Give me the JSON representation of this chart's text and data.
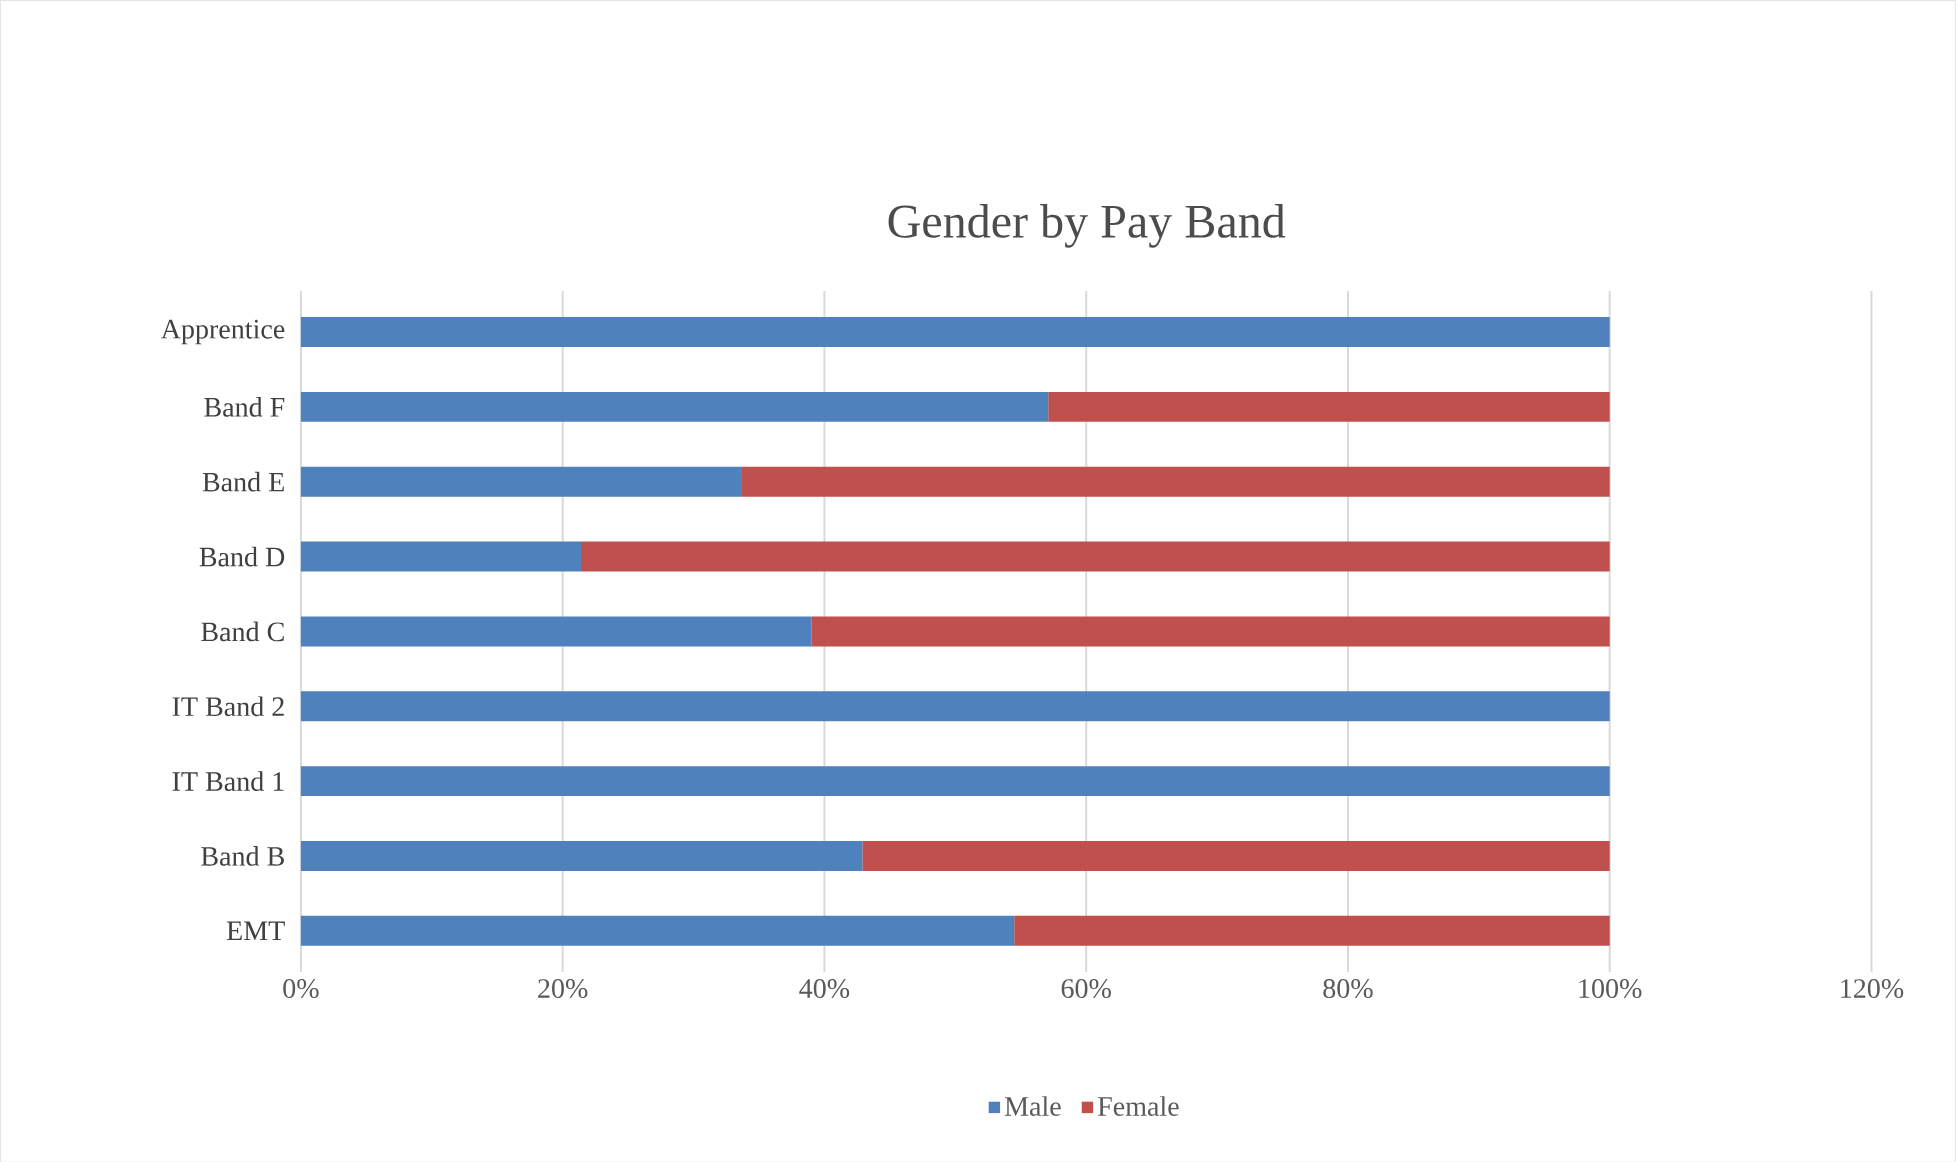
{
  "chart_data": {
    "type": "bar",
    "orientation": "horizontal",
    "stacked": true,
    "title": "Gender by Pay Band",
    "categories": [
      "Apprentice",
      "Band F",
      "Band E",
      "Band D",
      "Band C",
      "IT Band 2",
      "IT Band 1",
      "Band B",
      "EMT"
    ],
    "series": [
      {
        "name": "Male",
        "color": "#4f81bd",
        "values": [
          100,
          57.1,
          33.7,
          21.4,
          39.0,
          100,
          100,
          42.9,
          54.5
        ]
      },
      {
        "name": "Female",
        "color": "#c0504d",
        "values": [
          0,
          42.9,
          66.3,
          78.6,
          61.0,
          0,
          0,
          57.1,
          45.5
        ]
      }
    ],
    "xlim": [
      0,
      120
    ],
    "xticks": [
      {
        "value": 0,
        "label": "0%"
      },
      {
        "value": 20,
        "label": "20%"
      },
      {
        "value": 40,
        "label": "40%"
      },
      {
        "value": 60,
        "label": "60%"
      },
      {
        "value": 80,
        "label": "80%"
      },
      {
        "value": 100,
        "label": "100%"
      },
      {
        "value": 120,
        "label": "120%"
      }
    ],
    "grid": "x",
    "legend": "bottom"
  }
}
